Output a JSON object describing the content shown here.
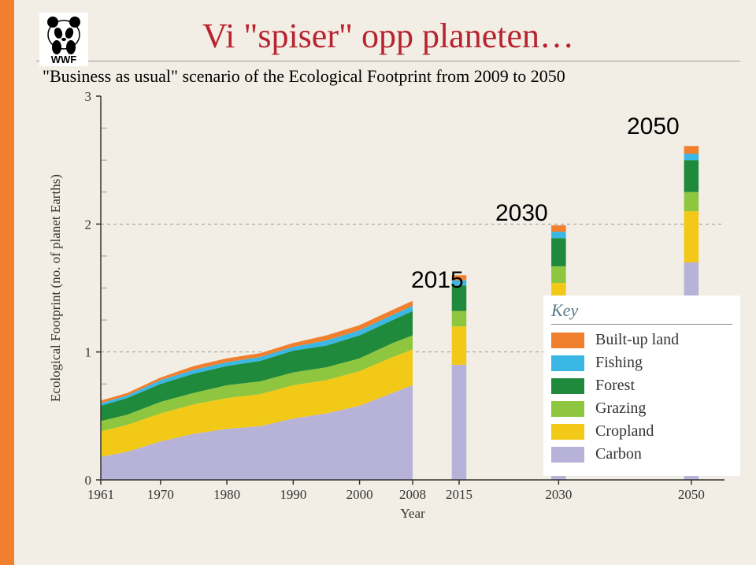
{
  "page": {
    "left_bar_color": "#f07f2e",
    "background_color": "#f2eee5",
    "title": "Vi \"spiser\" opp planeten…",
    "title_color": "#b8232f",
    "subtitle": "\"Business as usual\" scenario of the Ecological Footprint from 2009 to 2050"
  },
  "annotations": {
    "a2015": "2015",
    "a2030": "2030",
    "a2050": "2050"
  },
  "chart": {
    "type": "stacked-area-with-bars",
    "plot_bg": "#f2eee5",
    "grid_color": "#9a9a9a",
    "axis_color": "#333333",
    "x_label": "Year",
    "y_label": "Ecological Footprint (no. of planet Earths)",
    "ylim": [
      0,
      3
    ],
    "ytick_step": 1,
    "yticks": [
      0,
      1,
      2,
      3
    ],
    "years_area": [
      1961,
      1965,
      1970,
      1975,
      1980,
      1985,
      1990,
      1995,
      2000,
      2005,
      2008
    ],
    "series_order": [
      "carbon",
      "cropland",
      "grazing",
      "forest",
      "fishing",
      "builtup"
    ],
    "series": {
      "carbon": {
        "color": "#b7b2d8",
        "values": [
          0.18,
          0.22,
          0.3,
          0.36,
          0.4,
          0.42,
          0.48,
          0.52,
          0.58,
          0.68,
          0.74
        ]
      },
      "cropland": {
        "color": "#f3c917",
        "values": [
          0.2,
          0.21,
          0.22,
          0.23,
          0.24,
          0.25,
          0.26,
          0.26,
          0.27,
          0.28,
          0.28
        ]
      },
      "grazing": {
        "color": "#8fc63f",
        "values": [
          0.08,
          0.08,
          0.09,
          0.09,
          0.1,
          0.1,
          0.1,
          0.1,
          0.1,
          0.11,
          0.11
        ]
      },
      "forest": {
        "color": "#1f8a3b",
        "values": [
          0.12,
          0.13,
          0.14,
          0.15,
          0.15,
          0.16,
          0.17,
          0.17,
          0.18,
          0.18,
          0.19
        ]
      },
      "fishing": {
        "color": "#3bb7e5",
        "values": [
          0.02,
          0.02,
          0.03,
          0.03,
          0.03,
          0.03,
          0.03,
          0.04,
          0.04,
          0.04,
          0.04
        ]
      },
      "builtup": {
        "color": "#f07f2e",
        "values": [
          0.02,
          0.02,
          0.02,
          0.03,
          0.03,
          0.03,
          0.03,
          0.04,
          0.04,
          0.04,
          0.04
        ]
      }
    },
    "bars": {
      "years": [
        2015,
        2030,
        2050
      ],
      "width_years": 2.2,
      "stacks": {
        "2015": {
          "carbon": 0.9,
          "cropland": 0.3,
          "grazing": 0.12,
          "forest": 0.2,
          "fishing": 0.04,
          "builtup": 0.04
        },
        "2030": {
          "carbon": 1.2,
          "cropland": 0.34,
          "grazing": 0.13,
          "forest": 0.22,
          "fishing": 0.05,
          "builtup": 0.05
        },
        "2050": {
          "carbon": 1.7,
          "cropland": 0.4,
          "grazing": 0.15,
          "forest": 0.25,
          "fishing": 0.05,
          "builtup": 0.06
        }
      }
    },
    "xticks": [
      1961,
      1970,
      1980,
      1990,
      2000,
      2008,
      2015,
      2030,
      2050
    ],
    "x_domain": [
      1961,
      2055
    ]
  },
  "legend": {
    "title": "Key",
    "items": [
      {
        "label": "Built-up land",
        "color": "#f07f2e"
      },
      {
        "label": "Fishing",
        "color": "#3bb7e5"
      },
      {
        "label": "Forest",
        "color": "#1f8a3b"
      },
      {
        "label": "Grazing",
        "color": "#8fc63f"
      },
      {
        "label": "Cropland",
        "color": "#f3c917"
      },
      {
        "label": "Carbon",
        "color": "#b7b2d8"
      }
    ]
  }
}
